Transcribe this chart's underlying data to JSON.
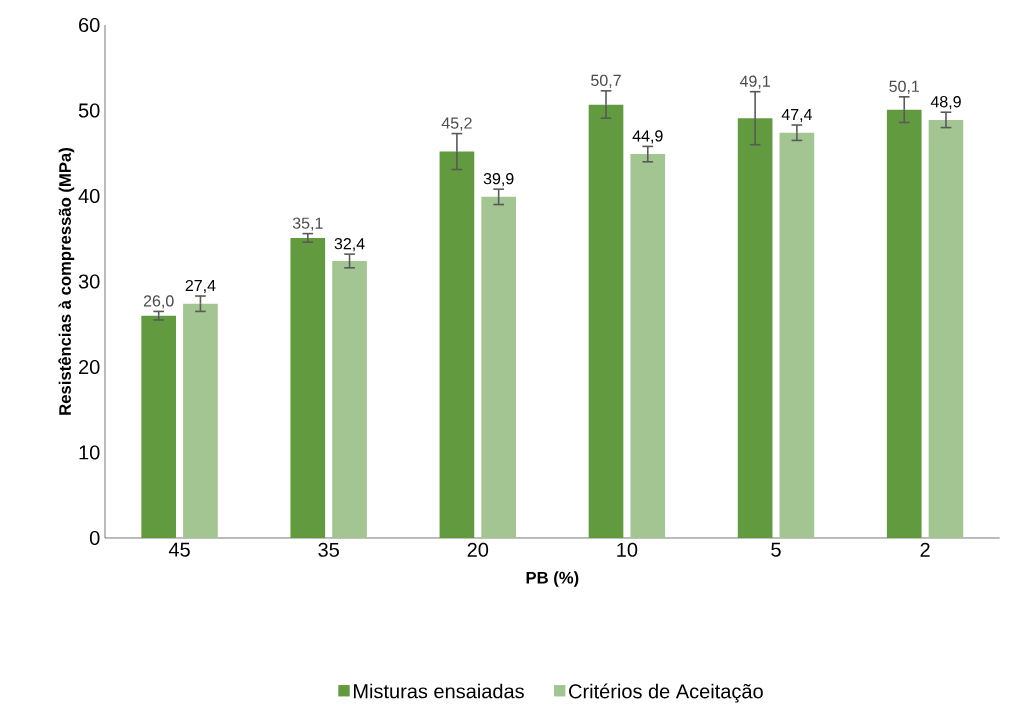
{
  "chart_data": {
    "type": "bar",
    "xlabel": "PB (%)",
    "ylabel": "Resistências à compressão (MPa)",
    "categories": [
      "45",
      "35",
      "20",
      "10",
      "5",
      "2"
    ],
    "series": [
      {
        "name": "Misturas  ensaiadas",
        "color": "#629b3f",
        "values": [
          26.0,
          35.1,
          45.2,
          50.7,
          49.1,
          50.1
        ],
        "errors": [
          0.5,
          0.5,
          2.1,
          1.6,
          3.1,
          1.5
        ],
        "value_labels": [
          "26,0",
          "35,1",
          "45,2",
          "50,7",
          "49,1",
          "50,1"
        ]
      },
      {
        "name": "Critérios de Aceitação",
        "color": "#a3c592",
        "values": [
          27.4,
          32.4,
          39.9,
          44.9,
          47.4,
          48.9
        ],
        "errors": [
          0.9,
          0.8,
          0.9,
          0.9,
          0.9,
          0.9
        ],
        "value_labels": [
          "27,4",
          "32,4",
          "39,9",
          "44,9",
          "47,4",
          "48,9"
        ]
      }
    ],
    "ylim": [
      0,
      60
    ],
    "yticks": [
      0,
      10,
      20,
      30,
      40,
      50,
      60
    ],
    "grid": false,
    "legend": "bottom"
  }
}
